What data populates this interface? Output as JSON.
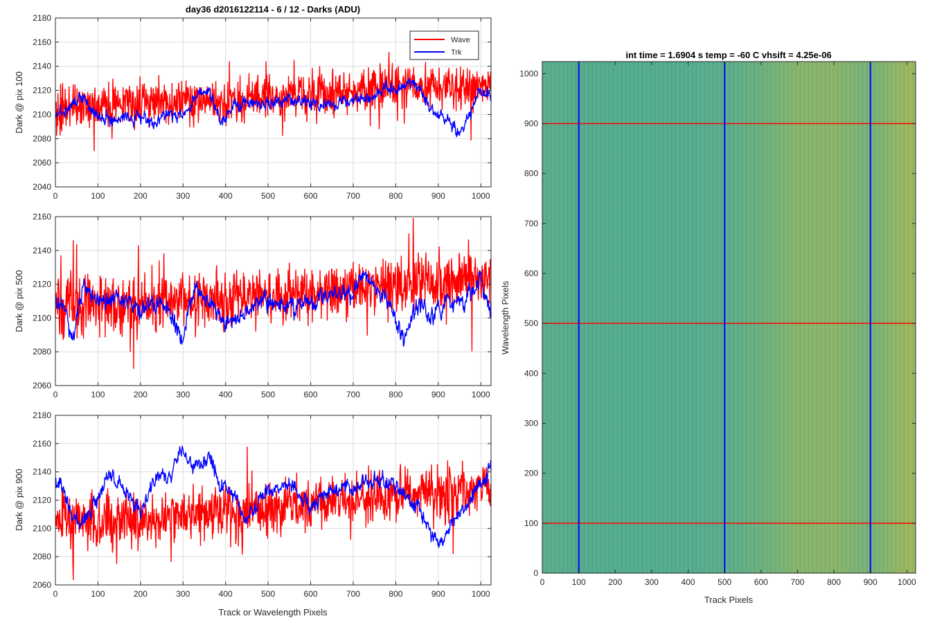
{
  "figure": {
    "colors": {
      "wave": "#ff0000",
      "trk": "#0000ff",
      "grid": "#dcdcdc",
      "axis": "#262626",
      "image_low": "#1aa3b5",
      "image_high": "#cdbf3c"
    }
  },
  "chart_data": [
    {
      "id": "top",
      "type": "line",
      "title": "day36 d2016122114 - 6 / 12 - Darks (ADU)",
      "xlabel": "",
      "ylabel": "Dark @ pix 100",
      "xlim": [
        0,
        1024
      ],
      "ylim": [
        2040,
        2180
      ],
      "xticks": [
        "0",
        "100",
        "200",
        "300",
        "400",
        "500",
        "600",
        "700",
        "800",
        "900",
        "1000"
      ],
      "yticks": [
        "2040",
        "2060",
        "2080",
        "2100",
        "2120",
        "2140",
        "2160",
        "2180"
      ],
      "grid": true,
      "legend": {
        "placement": "top-right",
        "entries": [
          "Wave",
          "Trk"
        ]
      },
      "series": [
        {
          "name": "Wave",
          "color": "#ff0000",
          "x": [
            0,
            50,
            100,
            150,
            200,
            250,
            300,
            350,
            400,
            450,
            500,
            550,
            600,
            650,
            700,
            750,
            800,
            850,
            900,
            950,
            1024
          ],
          "values": [
            2103,
            2106,
            2108,
            2109,
            2110,
            2111,
            2112,
            2112,
            2111,
            2113,
            2115,
            2116,
            2117,
            2118,
            2120,
            2121,
            2123,
            2124,
            2122,
            2122,
            2126
          ],
          "noise": 12
        },
        {
          "name": "Trk",
          "color": "#0000ff",
          "x": [
            0,
            30,
            60,
            100,
            130,
            160,
            200,
            230,
            260,
            300,
            340,
            360,
            390,
            420,
            450,
            500,
            550,
            600,
            650,
            700,
            750,
            800,
            850,
            880,
            920,
            950,
            1000,
            1024
          ],
          "values": [
            2100,
            2103,
            2115,
            2098,
            2095,
            2100,
            2098,
            2092,
            2102,
            2098,
            2118,
            2120,
            2093,
            2108,
            2110,
            2108,
            2112,
            2110,
            2108,
            2112,
            2115,
            2122,
            2125,
            2105,
            2096,
            2085,
            2118,
            2116
          ],
          "noise": 5
        }
      ]
    },
    {
      "id": "mid",
      "type": "line",
      "title": "",
      "xlabel": "",
      "ylabel": "Dark @ pix 500",
      "xlim": [
        0,
        1024
      ],
      "ylim": [
        2060,
        2160
      ],
      "xticks": [
        "0",
        "100",
        "200",
        "300",
        "400",
        "500",
        "600",
        "700",
        "800",
        "900",
        "1000"
      ],
      "yticks": [
        "2060",
        "2080",
        "2100",
        "2120",
        "2140",
        "2160"
      ],
      "grid": true,
      "series": [
        {
          "name": "Wave",
          "color": "#ff0000",
          "x": [
            0,
            50,
            100,
            150,
            200,
            250,
            300,
            350,
            400,
            450,
            500,
            550,
            600,
            650,
            700,
            750,
            800,
            850,
            900,
            950,
            1024
          ],
          "values": [
            2106,
            2108,
            2108,
            2108,
            2109,
            2110,
            2110,
            2111,
            2111,
            2112,
            2113,
            2114,
            2115,
            2116,
            2118,
            2119,
            2120,
            2121,
            2122,
            2124,
            2125
          ],
          "noise": 11
        },
        {
          "name": "Trk",
          "color": "#0000ff",
          "x": [
            0,
            20,
            40,
            60,
            100,
            150,
            200,
            250,
            300,
            330,
            360,
            400,
            450,
            500,
            550,
            600,
            650,
            700,
            720,
            760,
            800,
            820,
            850,
            880,
            920,
            960,
            1000,
            1024
          ],
          "values": [
            2112,
            2108,
            2085,
            2118,
            2110,
            2112,
            2105,
            2110,
            2090,
            2118,
            2112,
            2095,
            2105,
            2110,
            2108,
            2108,
            2115,
            2115,
            2123,
            2118,
            2100,
            2088,
            2110,
            2100,
            2108,
            2108,
            2122,
            2105
          ],
          "noise": 5
        }
      ]
    },
    {
      "id": "bot",
      "type": "line",
      "title": "",
      "xlabel": "Track or Wavelength Pixels",
      "ylabel": "Dark @ pix 900",
      "xlim": [
        0,
        1024
      ],
      "ylim": [
        2060,
        2180
      ],
      "xticks": [
        "0",
        "100",
        "200",
        "300",
        "400",
        "500",
        "600",
        "700",
        "800",
        "900",
        "1000"
      ],
      "yticks": [
        "2060",
        "2080",
        "2100",
        "2120",
        "2140",
        "2160",
        "2180"
      ],
      "grid": true,
      "series": [
        {
          "name": "Wave",
          "color": "#ff0000",
          "x": [
            0,
            50,
            100,
            150,
            200,
            250,
            300,
            350,
            400,
            450,
            500,
            550,
            600,
            650,
            700,
            750,
            800,
            850,
            900,
            950,
            1024
          ],
          "values": [
            2108,
            2106,
            2104,
            2105,
            2106,
            2108,
            2110,
            2111,
            2110,
            2112,
            2113,
            2115,
            2116,
            2118,
            2120,
            2122,
            2124,
            2125,
            2124,
            2125,
            2130
          ],
          "noise": 12
        },
        {
          "name": "Trk",
          "color": "#0000ff",
          "x": [
            0,
            20,
            40,
            70,
            100,
            130,
            160,
            200,
            240,
            270,
            290,
            320,
            360,
            390,
            420,
            450,
            500,
            550,
            600,
            650,
            700,
            750,
            800,
            850,
            900,
            950,
            1000,
            1024
          ],
          "values": [
            2135,
            2128,
            2105,
            2105,
            2122,
            2140,
            2128,
            2112,
            2138,
            2135,
            2155,
            2145,
            2150,
            2130,
            2122,
            2105,
            2128,
            2130,
            2115,
            2128,
            2128,
            2135,
            2130,
            2115,
            2088,
            2112,
            2130,
            2145
          ],
          "noise": 5
        }
      ]
    },
    {
      "id": "img",
      "type": "heatmap",
      "title": "int time = 1.6904 s    temp = -60 C    vhsift = 4.25e-06",
      "xlabel": "Track Pixels",
      "ylabel": "Wavelength Pixels",
      "xlim": [
        0,
        1024
      ],
      "ylim": [
        0,
        1024
      ],
      "xticks": [
        "0",
        "100",
        "200",
        "300",
        "400",
        "500",
        "600",
        "700",
        "800",
        "900",
        "1000"
      ],
      "yticks": [
        "0",
        "100",
        "200",
        "300",
        "400",
        "500",
        "600",
        "700",
        "800",
        "900",
        "1000"
      ],
      "grid": false,
      "vertical_markers": {
        "color": "#0000ff",
        "x": [
          100,
          500,
          900
        ]
      },
      "horizontal_markers": {
        "color": "#ff0000",
        "y": [
          100,
          500,
          900
        ]
      },
      "intensity_profile": {
        "x": [
          0,
          100,
          200,
          300,
          400,
          500,
          600,
          700,
          800,
          900,
          1000,
          1024
        ],
        "level": [
          0.35,
          0.33,
          0.32,
          0.32,
          0.33,
          0.35,
          0.45,
          0.6,
          0.62,
          0.5,
          0.72,
          0.7
        ]
      }
    }
  ]
}
